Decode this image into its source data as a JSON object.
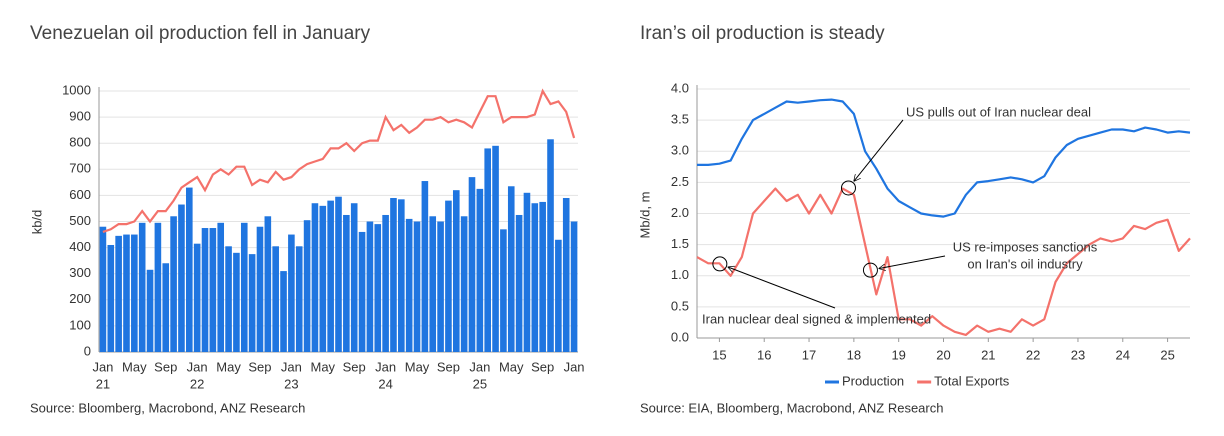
{
  "chart_data": [
    {
      "type": "combo",
      "title": "Venezuelan oil production fell in January",
      "source": "Source:  Bloomberg, Macrobond, ANZ Research",
      "y_label": "kb/d",
      "categories": [
        "Jan",
        null,
        null,
        null,
        "May",
        null,
        null,
        null,
        "Sep",
        null,
        null,
        null,
        "Jan",
        null,
        null,
        null,
        "May",
        null,
        null,
        null,
        "Sep",
        null,
        null,
        null,
        "Jan",
        null,
        null,
        null,
        "May",
        null,
        null,
        null,
        "Sep",
        null,
        null,
        null,
        "Jan",
        null,
        null,
        null,
        "May",
        null,
        null,
        null,
        "Sep",
        null,
        null,
        null,
        "Jan",
        null,
        null,
        null,
        "May",
        null,
        null,
        null,
        "Sep",
        null,
        null,
        null,
        "Jan"
      ],
      "year_labels": [
        "21",
        "22",
        "23",
        "24",
        "25"
      ],
      "series": [
        {
          "type": "bar",
          "color": "#1f75e0",
          "values": [
            480,
            410,
            445,
            450,
            450,
            495,
            315,
            495,
            340,
            520,
            565,
            630,
            415,
            475,
            475,
            495,
            405,
            380,
            495,
            375,
            480,
            520,
            405,
            310,
            450,
            405,
            505,
            570,
            560,
            580,
            595,
            525,
            570,
            460,
            500,
            490,
            525,
            590,
            585,
            510,
            500,
            655,
            520,
            500,
            580,
            620,
            520,
            670,
            625,
            780,
            790,
            470,
            635,
            525,
            610,
            570,
            575,
            815,
            430,
            590,
            500
          ]
        },
        {
          "type": "line",
          "color": "#f4726b",
          "values": [
            460,
            470,
            490,
            490,
            500,
            540,
            500,
            540,
            540,
            580,
            630,
            650,
            670,
            620,
            680,
            700,
            680,
            710,
            710,
            640,
            660,
            650,
            690,
            660,
            670,
            700,
            720,
            730,
            740,
            780,
            780,
            800,
            770,
            800,
            810,
            810,
            900,
            850,
            870,
            840,
            860,
            890,
            890,
            900,
            880,
            890,
            880,
            860,
            920,
            980,
            980,
            880,
            900,
            900,
            900,
            910,
            1000,
            950,
            960,
            920,
            820
          ]
        }
      ],
      "ylim": [
        0,
        1000
      ],
      "yticks": [
        0,
        100,
        200,
        300,
        400,
        500,
        600,
        700,
        800,
        900,
        1000
      ],
      "grid": true
    },
    {
      "type": "line",
      "title": "Iran’s oil production is steady",
      "source": "Source: EIA, Bloomberg, Macrobond, ANZ Research",
      "y_label": "Mb/d, m",
      "x": [
        2015,
        2015.25,
        2015.5,
        2015.75,
        2016,
        2016.25,
        2016.5,
        2016.75,
        2017,
        2017.25,
        2017.5,
        2017.75,
        2018,
        2018.25,
        2018.5,
        2018.75,
        2019,
        2019.25,
        2019.5,
        2019.75,
        2020,
        2020.25,
        2020.5,
        2020.75,
        2021,
        2021.25,
        2021.5,
        2021.75,
        2022,
        2022.25,
        2022.5,
        2022.75,
        2023,
        2023.25,
        2023.5,
        2023.75,
        2024,
        2024.25,
        2024.5,
        2024.75,
        2025,
        2025.25,
        2025.5,
        2025.75,
        2026
      ],
      "series": [
        {
          "name": "Production",
          "color": "#1f75e0",
          "values": [
            2.78,
            2.78,
            2.8,
            2.85,
            3.2,
            3.5,
            3.6,
            3.7,
            3.8,
            3.78,
            3.8,
            3.82,
            3.83,
            3.8,
            3.6,
            3.0,
            2.72,
            2.4,
            2.2,
            2.1,
            2.0,
            1.97,
            1.95,
            2.0,
            2.3,
            2.5,
            2.52,
            2.55,
            2.58,
            2.55,
            2.5,
            2.6,
            2.9,
            3.1,
            3.2,
            3.25,
            3.3,
            3.35,
            3.35,
            3.32,
            3.38,
            3.35,
            3.3,
            3.32,
            3.3
          ]
        },
        {
          "name": "Total Exports",
          "color": "#f4726b",
          "values": [
            1.3,
            1.2,
            1.2,
            1.0,
            1.3,
            2.0,
            2.2,
            2.4,
            2.2,
            2.3,
            2.0,
            2.3,
            2.0,
            2.4,
            2.3,
            1.5,
            0.7,
            1.3,
            0.3,
            0.3,
            0.2,
            0.35,
            0.2,
            0.1,
            0.05,
            0.2,
            0.1,
            0.15,
            0.1,
            0.3,
            0.2,
            0.3,
            0.9,
            1.2,
            1.35,
            1.5,
            1.6,
            1.55,
            1.6,
            1.8,
            1.75,
            1.85,
            1.9,
            1.4,
            1.6
          ]
        }
      ],
      "annotations": [
        {
          "text": "US pulls out of Iran nuclear deal",
          "x": 2018.38,
          "y": 2.41
        },
        {
          "lines": [
            "US re-imposes sanctions",
            "on Iran's oil industry"
          ],
          "x": 2018.87,
          "y": 1.09
        },
        {
          "text": "Iran nuclear deal signed & implemented",
          "x": 2015.51,
          "y": 1.19
        }
      ],
      "xlim": [
        2015,
        2026
      ],
      "xticks": [
        {
          "value": 2015.5,
          "label": "15"
        },
        {
          "value": 2016.5,
          "label": "16"
        },
        {
          "value": 2017.5,
          "label": "17"
        },
        {
          "value": 2018.5,
          "label": "18"
        },
        {
          "value": 2019.5,
          "label": "19"
        },
        {
          "value": 2020.5,
          "label": "20"
        },
        {
          "value": 2021.5,
          "label": "21"
        },
        {
          "value": 2022.5,
          "label": "22"
        },
        {
          "value": 2023.5,
          "label": "23"
        },
        {
          "value": 2024.5,
          "label": "24"
        },
        {
          "value": 2025.5,
          "label": "25"
        }
      ],
      "ylim": [
        0,
        4
      ],
      "yticks": [
        {
          "value": 0,
          "label": "0.0"
        },
        0.5,
        {
          "value": 1,
          "label": "1.0"
        },
        1.5,
        {
          "value": 2,
          "label": "2.0"
        },
        2.5,
        {
          "value": 3,
          "label": "3.0"
        },
        3.5,
        {
          "value": 4,
          "label": "4.0"
        }
      ],
      "grid": true,
      "legend": "bottom"
    }
  ]
}
